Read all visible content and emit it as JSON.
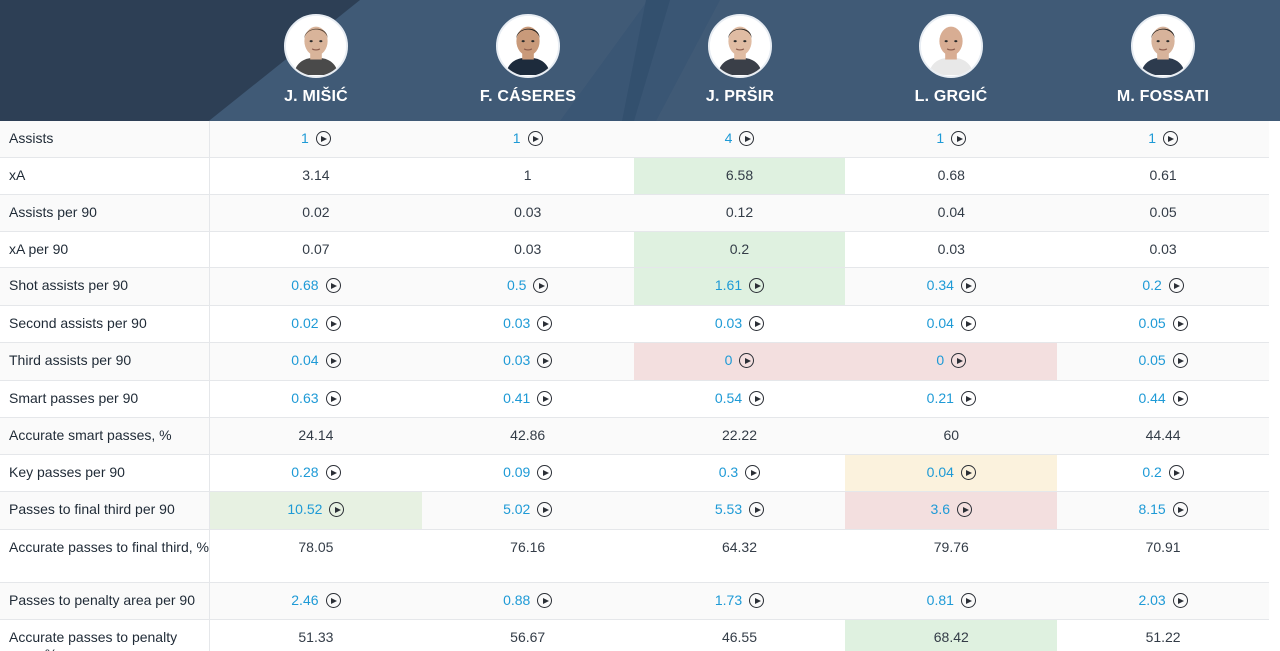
{
  "players": [
    {
      "name": "J. MIŠIĆ",
      "avatar": "player-photo"
    },
    {
      "name": "F. CÁSERES",
      "avatar": "player-photo"
    },
    {
      "name": "J. PRŠIR",
      "avatar": "player-photo"
    },
    {
      "name": "L. GRGIĆ",
      "avatar": "player-photo"
    },
    {
      "name": "M. FOSSATI",
      "avatar": "player-photo"
    }
  ],
  "highlight_colors": {
    "good": "#dff1e0",
    "good_alt": "#e7f1e2",
    "bad": "#f3dfdf",
    "warn": "#fbf2dd",
    "link": "#1e9ad6"
  },
  "rows": [
    {
      "label": "Assists",
      "height": 37,
      "cells": [
        {
          "v": "1",
          "link": true
        },
        {
          "v": "1",
          "link": true
        },
        {
          "v": "4",
          "link": true
        },
        {
          "v": "1",
          "link": true
        },
        {
          "v": "1",
          "link": true
        }
      ]
    },
    {
      "label": "xA",
      "height": 37,
      "cells": [
        {
          "v": "3.14"
        },
        {
          "v": "1"
        },
        {
          "v": "6.58",
          "hl": "green"
        },
        {
          "v": "0.68"
        },
        {
          "v": "0.61"
        }
      ]
    },
    {
      "label": "Assists per 90",
      "height": 37,
      "cells": [
        {
          "v": "0.02"
        },
        {
          "v": "0.03"
        },
        {
          "v": "0.12"
        },
        {
          "v": "0.04"
        },
        {
          "v": "0.05"
        }
      ]
    },
    {
      "label": "xA per 90",
      "height": 36,
      "cells": [
        {
          "v": "0.07"
        },
        {
          "v": "0.03"
        },
        {
          "v": "0.2",
          "hl": "green"
        },
        {
          "v": "0.03"
        },
        {
          "v": "0.03"
        }
      ]
    },
    {
      "label": "Shot assists per 90",
      "height": 38,
      "cells": [
        {
          "v": "0.68",
          "link": true
        },
        {
          "v": "0.5",
          "link": true
        },
        {
          "v": "1.61",
          "link": true,
          "hl": "green"
        },
        {
          "v": "0.34",
          "link": true
        },
        {
          "v": "0.2",
          "link": true
        }
      ]
    },
    {
      "label": "Second assists per 90",
      "height": 37,
      "cells": [
        {
          "v": "0.02",
          "link": true
        },
        {
          "v": "0.03",
          "link": true
        },
        {
          "v": "0.03",
          "link": true
        },
        {
          "v": "0.04",
          "link": true
        },
        {
          "v": "0.05",
          "link": true
        }
      ]
    },
    {
      "label": "Third assists per 90",
      "height": 38,
      "cells": [
        {
          "v": "0.04",
          "link": true
        },
        {
          "v": "0.03",
          "link": true
        },
        {
          "v": "0",
          "link": true,
          "hl": "red"
        },
        {
          "v": "0",
          "link": true,
          "hl": "red"
        },
        {
          "v": "0.05",
          "link": true
        }
      ]
    },
    {
      "label": "Smart passes per 90",
      "height": 37,
      "cells": [
        {
          "v": "0.63",
          "link": true
        },
        {
          "v": "0.41",
          "link": true
        },
        {
          "v": "0.54",
          "link": true
        },
        {
          "v": "0.21",
          "link": true
        },
        {
          "v": "0.44",
          "link": true
        }
      ]
    },
    {
      "label": "Accurate smart passes, %",
      "height": 37,
      "cells": [
        {
          "v": "24.14"
        },
        {
          "v": "42.86"
        },
        {
          "v": "22.22"
        },
        {
          "v": "60"
        },
        {
          "v": "44.44"
        }
      ]
    },
    {
      "label": "Key passes per 90",
      "height": 37,
      "cells": [
        {
          "v": "0.28",
          "link": true
        },
        {
          "v": "0.09",
          "link": true
        },
        {
          "v": "0.3",
          "link": true
        },
        {
          "v": "0.04",
          "link": true,
          "hl": "yellow"
        },
        {
          "v": "0.2",
          "link": true
        }
      ]
    },
    {
      "label": "Passes to final third per 90",
      "height": 38,
      "cells": [
        {
          "v": "10.52",
          "link": true,
          "hl": "green2"
        },
        {
          "v": "5.02",
          "link": true
        },
        {
          "v": "5.53",
          "link": true
        },
        {
          "v": "3.6",
          "link": true,
          "hl": "red"
        },
        {
          "v": "8.15",
          "link": true
        }
      ]
    },
    {
      "label": "Accurate passes to final third, %",
      "height": 53,
      "cells": [
        {
          "v": "78.05"
        },
        {
          "v": "76.16"
        },
        {
          "v": "64.32"
        },
        {
          "v": "79.76"
        },
        {
          "v": "70.91"
        }
      ]
    },
    {
      "label": "Passes to penalty area per 90",
      "height": 37,
      "cells": [
        {
          "v": "2.46",
          "link": true
        },
        {
          "v": "0.88",
          "link": true
        },
        {
          "v": "1.73",
          "link": true
        },
        {
          "v": "0.81",
          "link": true
        },
        {
          "v": "2.03",
          "link": true
        }
      ]
    },
    {
      "label": "Accurate passes to penalty area, %",
      "height": 53,
      "cells": [
        {
          "v": "51.33"
        },
        {
          "v": "56.67"
        },
        {
          "v": "46.55"
        },
        {
          "v": "68.42",
          "hl": "green"
        },
        {
          "v": "51.22"
        }
      ]
    }
  ]
}
